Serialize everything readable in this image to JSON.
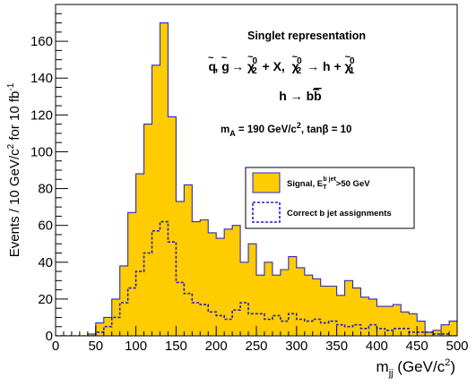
{
  "chart_data": {
    "type": "histogram",
    "xlabel": "m_jj (GeV/c²)",
    "ylabel": "Events / 10 GeV/c² for 10 fb⁻¹",
    "xlim": [
      0,
      500
    ],
    "ylim": [
      0,
      180
    ],
    "bin_width": 10,
    "x_ticks": [
      0,
      50,
      100,
      150,
      200,
      250,
      300,
      350,
      400,
      450,
      500
    ],
    "y_ticks": [
      0,
      20,
      40,
      60,
      80,
      100,
      120,
      140,
      160
    ],
    "x_minor_step": 10,
    "y_minor_step": 5,
    "grid": false,
    "legend_position": "center-right",
    "annotations": {
      "title": "Singlet representation",
      "process_line": "q̃, g̃ → χ̃⁰₂ + X,  χ̃⁰₂ → h + χ̃⁰₁",
      "decay_line": "h → bb̄",
      "params_line": "m_A = 190 GeV/c², tanβ = 10"
    },
    "colors": {
      "signal_fill": "#ffcc00",
      "signal_line": "#2b2bbf",
      "correct_line": "#2020c8"
    },
    "series": [
      {
        "name": "Signal, E_T^{b jet}>50 GeV",
        "style": "filled",
        "values": [
          0,
          0,
          0,
          0,
          1,
          7,
          10,
          20,
          38,
          67,
          88,
          115,
          147,
          170,
          119,
          73,
          82,
          62,
          63,
          56,
          53,
          58,
          60,
          40,
          50,
          33,
          40,
          33,
          36,
          43,
          37,
          33,
          31,
          27,
          27,
          22,
          30,
          26,
          21,
          20,
          16,
          16,
          17,
          13,
          12,
          8,
          2,
          3,
          6,
          8
        ]
      },
      {
        "name": "Correct b jet assignments",
        "style": "dashed",
        "values": [
          0,
          0,
          0,
          0,
          0,
          2,
          5,
          10,
          18,
          26,
          35,
          45,
          57,
          62,
          51,
          29,
          23,
          18,
          17,
          13,
          11,
          9,
          14,
          18,
          12,
          12,
          9,
          11,
          8,
          12,
          9,
          8,
          9,
          7,
          8,
          6,
          5,
          6,
          4,
          6,
          4,
          3,
          4,
          4,
          2,
          2,
          2,
          1,
          1,
          0
        ]
      }
    ]
  }
}
